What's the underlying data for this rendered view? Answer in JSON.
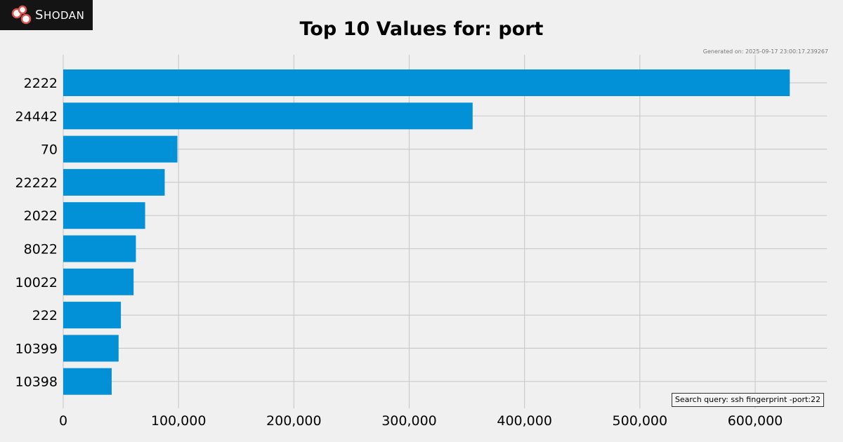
{
  "brand": {
    "logo_text": "SHODAN",
    "logo_first": "S",
    "logo_rest": "HODAN"
  },
  "footer": {
    "generated": "Generated on: 2025-09-17 23:00:17.239267",
    "search_query": "Search query: ssh fingerprint -port:22"
  },
  "colors": {
    "bar": "#0290d6",
    "grid": "#cbcbcb",
    "background": "#f0f0f0"
  },
  "chart_data": {
    "type": "bar",
    "orientation": "horizontal",
    "title": "Top 10 Values for: port",
    "xlabel": "",
    "ylabel": "",
    "categories": [
      "2222",
      "24442",
      "70",
      "22222",
      "2022",
      "8022",
      "10022",
      "222",
      "10399",
      "10398"
    ],
    "values": [
      630000,
      355000,
      99000,
      88000,
      71000,
      63000,
      61000,
      50000,
      48000,
      42000
    ],
    "xlim": [
      0,
      660000
    ],
    "xticks": [
      0,
      100000,
      200000,
      300000,
      400000,
      500000,
      600000
    ],
    "xtick_labels": [
      "0",
      "100,000",
      "200,000",
      "300,000",
      "400,000",
      "500,000",
      "600,000"
    ],
    "grid": true
  }
}
